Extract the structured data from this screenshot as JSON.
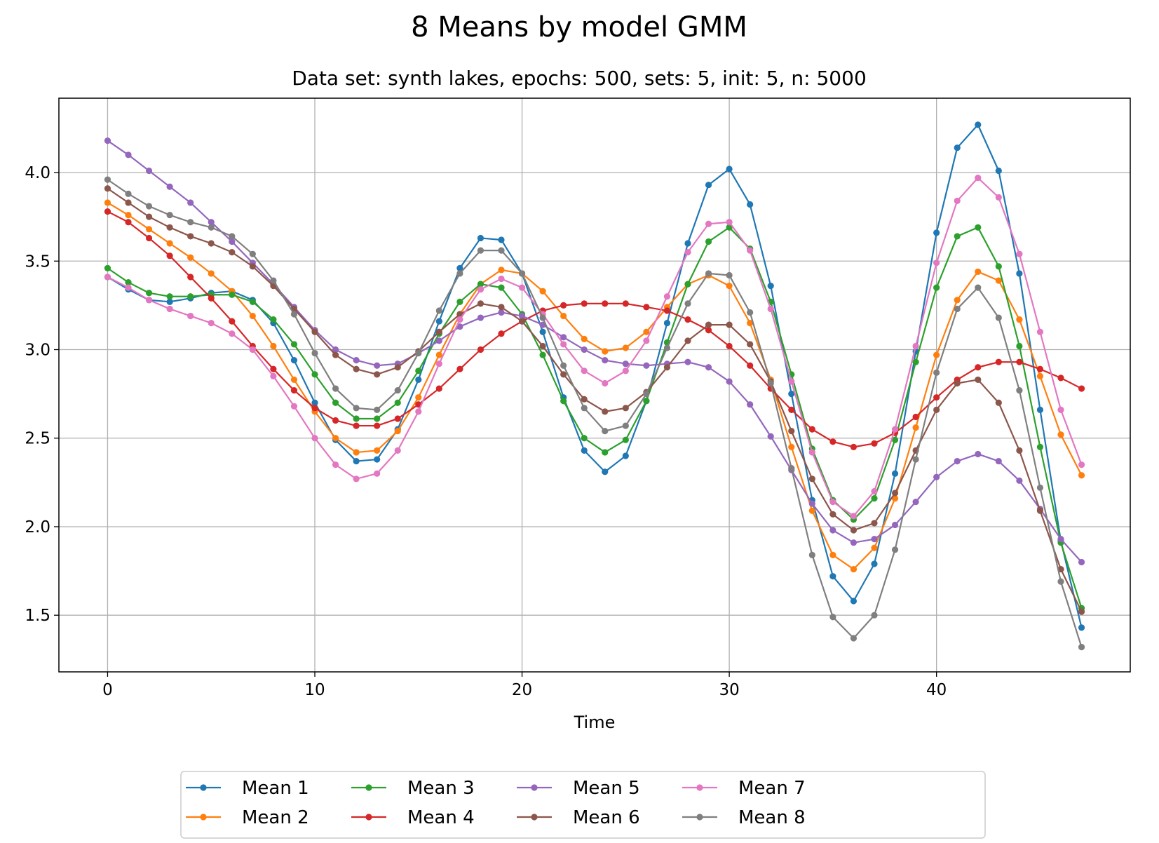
{
  "chart_data": {
    "type": "line",
    "title": "8 Means by model GMM",
    "subtitle": "Data set: synth lakes, epochs: 500, sets: 5, init: 5, n: 5000",
    "xlabel": "Time",
    "ylabel": "",
    "xlim": [
      -2.35,
      49.35
    ],
    "ylim": [
      1.18,
      4.42
    ],
    "xticks": [
      0,
      10,
      20,
      30,
      40
    ],
    "yticks": [
      1.5,
      2.0,
      2.5,
      3.0,
      3.5,
      4.0
    ],
    "ytick_labels": [
      "1.5",
      "2.0",
      "2.5",
      "3.0",
      "3.5",
      "4.0"
    ],
    "grid": true,
    "legend": {
      "placement": "bottom-center",
      "columns": 5
    },
    "x": [
      0,
      1,
      2,
      3,
      4,
      5,
      6,
      7,
      8,
      9,
      10,
      11,
      12,
      13,
      14,
      15,
      16,
      17,
      18,
      19,
      20,
      21,
      22,
      23,
      24,
      25,
      26,
      27,
      28,
      29,
      30,
      31,
      32,
      33,
      34,
      35,
      36,
      37,
      38,
      39,
      40,
      41,
      42,
      43,
      44,
      45,
      46,
      47
    ],
    "series": [
      {
        "name": "Mean 1",
        "color": "#1f77b4",
        "values": [
          3.41,
          3.34,
          3.28,
          3.27,
          3.29,
          3.32,
          3.33,
          3.28,
          3.15,
          2.94,
          2.7,
          2.49,
          2.37,
          2.38,
          2.55,
          2.83,
          3.16,
          3.46,
          3.63,
          3.62,
          3.43,
          3.1,
          2.73,
          2.43,
          2.31,
          2.4,
          2.71,
          3.15,
          3.6,
          3.93,
          4.02,
          3.82,
          3.36,
          2.75,
          2.15,
          1.72,
          1.58,
          1.79,
          2.3,
          2.99,
          3.66,
          4.14,
          4.27,
          4.01,
          3.43,
          2.66,
          1.92,
          1.43
        ]
      },
      {
        "name": "Mean 2",
        "color": "#ff7f0e",
        "values": [
          3.83,
          3.76,
          3.68,
          3.6,
          3.52,
          3.43,
          3.33,
          3.19,
          3.02,
          2.83,
          2.65,
          2.5,
          2.42,
          2.43,
          2.54,
          2.73,
          2.97,
          3.2,
          3.37,
          3.45,
          3.43,
          3.33,
          3.19,
          3.06,
          2.99,
          3.01,
          3.1,
          3.24,
          3.37,
          3.42,
          3.36,
          3.15,
          2.83,
          2.45,
          2.09,
          1.84,
          1.76,
          1.88,
          2.16,
          2.56,
          2.97,
          3.28,
          3.44,
          3.39,
          3.17,
          2.85,
          2.52,
          2.29
        ]
      },
      {
        "name": "Mean 3",
        "color": "#2ca02c",
        "values": [
          3.46,
          3.38,
          3.32,
          3.3,
          3.3,
          3.31,
          3.31,
          3.27,
          3.17,
          3.03,
          2.86,
          2.7,
          2.61,
          2.61,
          2.7,
          2.88,
          3.09,
          3.27,
          3.37,
          3.35,
          3.2,
          2.97,
          2.71,
          2.5,
          2.42,
          2.49,
          2.71,
          3.04,
          3.37,
          3.61,
          3.69,
          3.57,
          3.27,
          2.86,
          2.44,
          2.15,
          2.04,
          2.16,
          2.49,
          2.93,
          3.35,
          3.64,
          3.69,
          3.47,
          3.02,
          2.45,
          1.91,
          1.54
        ]
      },
      {
        "name": "Mean 4",
        "color": "#d62728",
        "values": [
          3.78,
          3.72,
          3.63,
          3.53,
          3.41,
          3.29,
          3.16,
          3.02,
          2.89,
          2.77,
          2.67,
          2.6,
          2.57,
          2.57,
          2.61,
          2.69,
          2.78,
          2.89,
          3.0,
          3.09,
          3.16,
          3.22,
          3.25,
          3.26,
          3.26,
          3.26,
          3.24,
          3.22,
          3.17,
          3.11,
          3.02,
          2.91,
          2.78,
          2.66,
          2.55,
          2.48,
          2.45,
          2.47,
          2.53,
          2.62,
          2.73,
          2.83,
          2.9,
          2.93,
          2.93,
          2.89,
          2.84,
          2.78
        ]
      },
      {
        "name": "Mean 5",
        "color": "#9467bd",
        "values": [
          4.18,
          4.1,
          4.01,
          3.92,
          3.83,
          3.72,
          3.61,
          3.49,
          3.37,
          3.24,
          3.11,
          3.0,
          2.94,
          2.91,
          2.92,
          2.98,
          3.05,
          3.13,
          3.18,
          3.21,
          3.19,
          3.14,
          3.07,
          3.0,
          2.94,
          2.92,
          2.91,
          2.92,
          2.93,
          2.9,
          2.82,
          2.69,
          2.51,
          2.32,
          2.13,
          1.98,
          1.91,
          1.93,
          2.01,
          2.14,
          2.28,
          2.37,
          2.41,
          2.37,
          2.26,
          2.1,
          1.93,
          1.8
        ]
      },
      {
        "name": "Mean 6",
        "color": "#8c564b",
        "values": [
          3.91,
          3.83,
          3.75,
          3.69,
          3.64,
          3.6,
          3.55,
          3.47,
          3.36,
          3.23,
          3.1,
          2.97,
          2.89,
          2.86,
          2.9,
          2.99,
          3.1,
          3.2,
          3.26,
          3.24,
          3.16,
          3.02,
          2.86,
          2.72,
          2.65,
          2.67,
          2.76,
          2.9,
          3.05,
          3.14,
          3.14,
          3.03,
          2.82,
          2.54,
          2.27,
          2.07,
          1.98,
          2.02,
          2.19,
          2.43,
          2.66,
          2.81,
          2.83,
          2.7,
          2.43,
          2.09,
          1.76,
          1.52
        ]
      },
      {
        "name": "Mean 7",
        "color": "#e377c2",
        "values": [
          3.41,
          3.35,
          3.28,
          3.23,
          3.19,
          3.15,
          3.09,
          3.0,
          2.85,
          2.68,
          2.5,
          2.35,
          2.27,
          2.3,
          2.43,
          2.65,
          2.92,
          3.17,
          3.34,
          3.4,
          3.35,
          3.2,
          3.03,
          2.88,
          2.81,
          2.88,
          3.05,
          3.3,
          3.55,
          3.71,
          3.72,
          3.56,
          3.23,
          2.82,
          2.42,
          2.14,
          2.06,
          2.2,
          2.55,
          3.02,
          3.49,
          3.84,
          3.97,
          3.86,
          3.54,
          3.1,
          2.66,
          2.35
        ]
      },
      {
        "name": "Mean 8",
        "color": "#7f7f7f",
        "values": [
          3.96,
          3.88,
          3.81,
          3.76,
          3.72,
          3.69,
          3.64,
          3.54,
          3.39,
          3.2,
          2.98,
          2.78,
          2.67,
          2.66,
          2.77,
          2.98,
          3.22,
          3.43,
          3.56,
          3.56,
          3.43,
          3.18,
          2.91,
          2.67,
          2.54,
          2.57,
          2.75,
          3.01,
          3.26,
          3.43,
          3.42,
          3.21,
          2.81,
          2.33,
          1.84,
          1.49,
          1.37,
          1.5,
          1.87,
          2.38,
          2.87,
          3.23,
          3.35,
          3.18,
          2.77,
          2.22,
          1.69,
          1.32
        ]
      }
    ]
  }
}
